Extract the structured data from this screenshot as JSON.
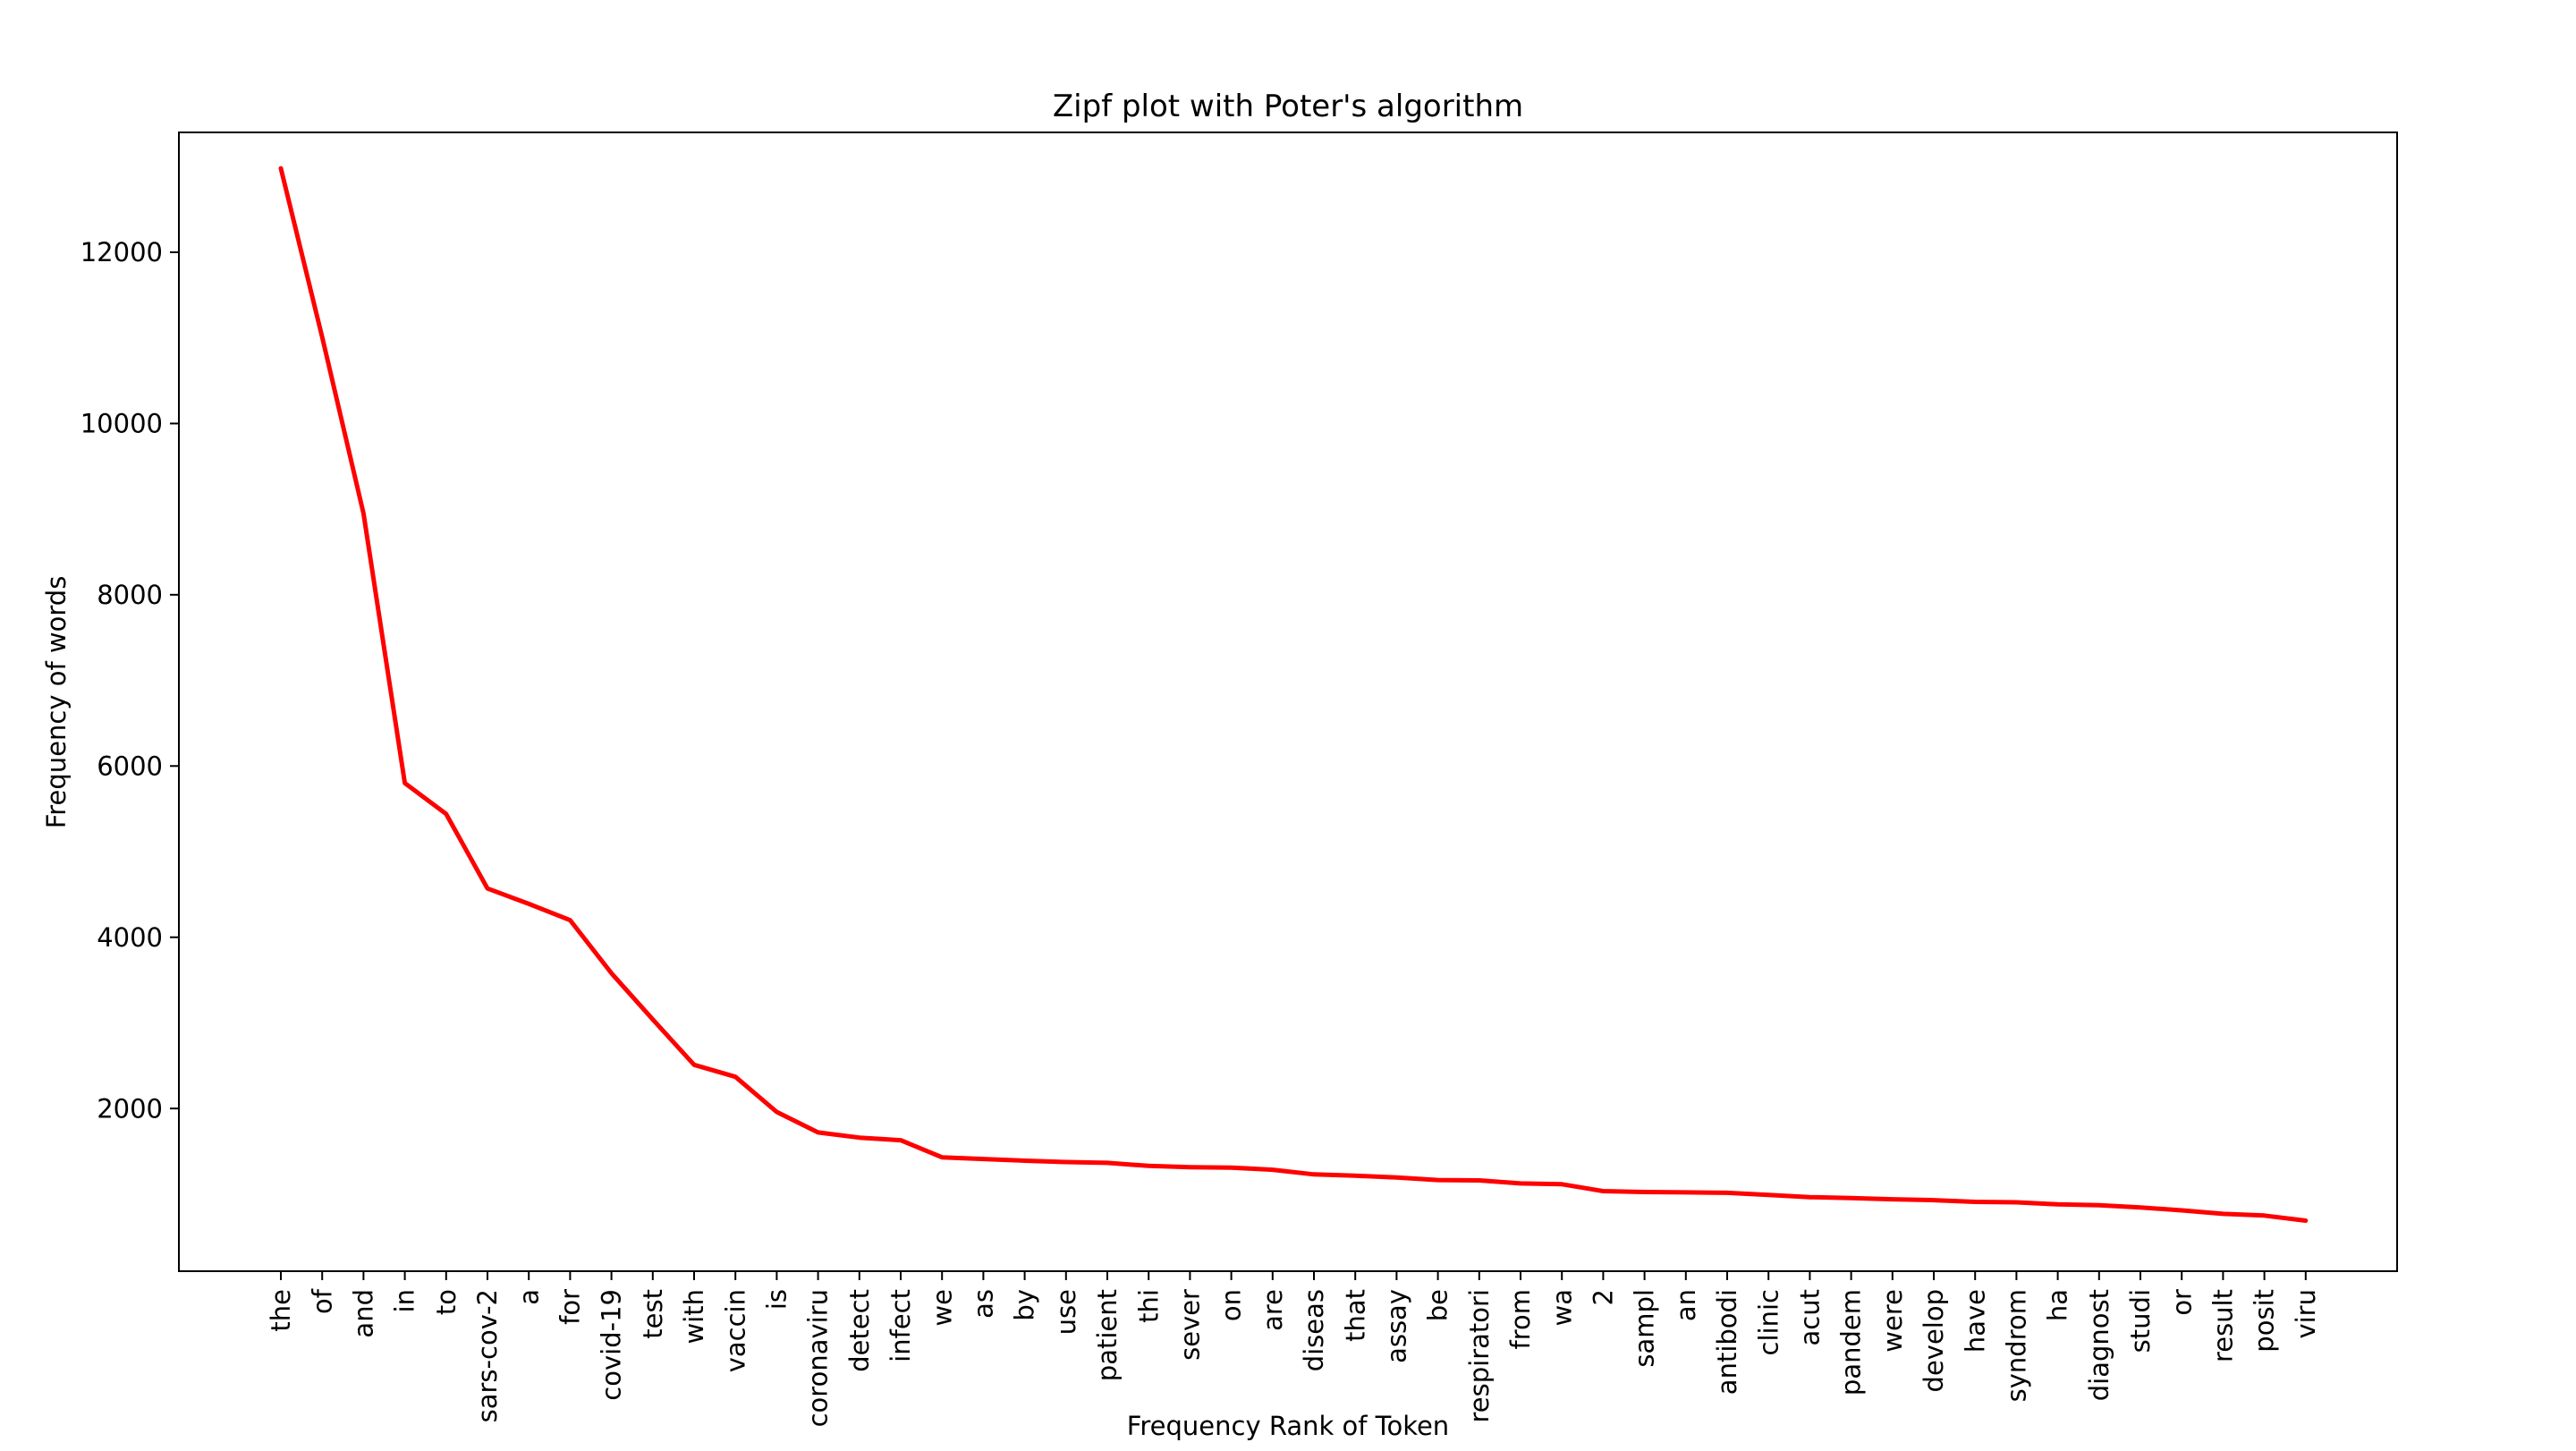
{
  "chart_data": {
    "type": "line",
    "title": "Zipf plot with Poter's algorithm",
    "xlabel": "Frequency Rank of Token",
    "ylabel": "Frequency of words",
    "line_color": "#ff0000",
    "grid": false,
    "ylim": [
      100,
      13400
    ],
    "yticks": [
      2000,
      4000,
      6000,
      8000,
      10000,
      12000
    ],
    "ytick_labels": [
      "2000",
      "4000",
      "6000",
      "8000",
      "10000",
      "12000"
    ],
    "categories": [
      "the",
      "of",
      "and",
      "in",
      "to",
      "sars-cov-2",
      "a",
      "for",
      "covid-19",
      "test",
      "with",
      "vaccin",
      "is",
      "coronaviru",
      "detect",
      "infect",
      "we",
      "as",
      "by",
      "use",
      "patient",
      "thi",
      "sever",
      "on",
      "are",
      "diseas",
      "that",
      "assay",
      "be",
      "respiratori",
      "from",
      "wa",
      "2",
      "sampl",
      "an",
      "antibodi",
      "clinic",
      "acut",
      "pandem",
      "were",
      "develop",
      "have",
      "syndrom",
      "ha",
      "diagnost",
      "studi",
      "or",
      "result",
      "posit",
      "viru"
    ],
    "values": [
      12980,
      11010,
      8950,
      5800,
      5440,
      4570,
      4390,
      4200,
      3580,
      3040,
      2510,
      2370,
      1960,
      1720,
      1660,
      1630,
      1430,
      1410,
      1390,
      1375,
      1365,
      1330,
      1315,
      1310,
      1285,
      1230,
      1215,
      1195,
      1165,
      1160,
      1125,
      1115,
      1035,
      1025,
      1020,
      1015,
      990,
      965,
      955,
      940,
      930,
      910,
      905,
      880,
      870,
      845,
      810,
      770,
      750,
      690
    ]
  }
}
